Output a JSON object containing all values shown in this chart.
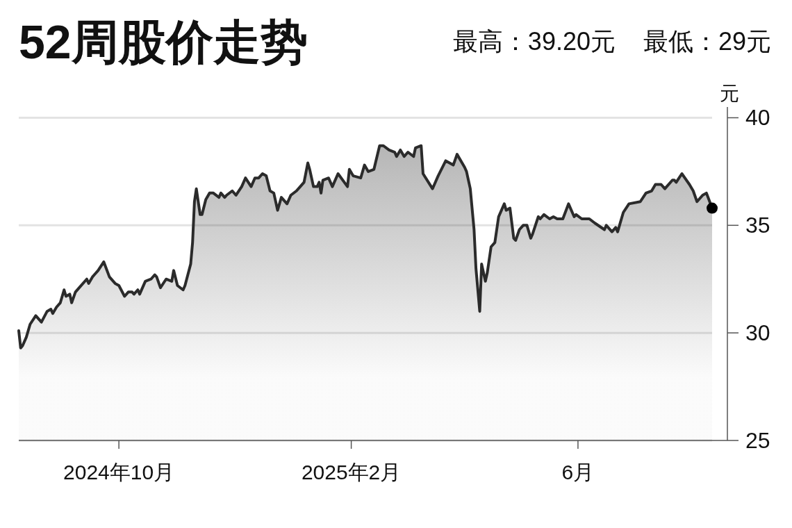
{
  "chart_data": {
    "type": "area",
    "title": "52周股价走势",
    "annotations": [
      "最高：39.20元",
      "最低：29元"
    ],
    "ylabel": "元",
    "xlim": [
      "2024-08-09",
      "2025-08-11"
    ],
    "xticks": [
      {
        "value": "2024-10-01",
        "label": "2024年10月"
      },
      {
        "value": "2025-02-01",
        "label": "2025年2月"
      },
      {
        "value": "2025-06-01",
        "label": "6月"
      }
    ],
    "ylim": [
      25,
      40.5
    ],
    "yticks": [
      25,
      30,
      35,
      40
    ],
    "grid": "y",
    "series": [
      {
        "color": "#2b2b2b",
        "x": [
          "2024-08-09",
          "2024-08-10",
          "2024-08-11",
          "2024-08-13",
          "2024-08-15",
          "2024-08-18",
          "2024-08-21",
          "2024-08-24",
          "2024-08-26",
          "2024-08-27",
          "2024-08-29",
          "2024-08-31",
          "2024-09-02",
          "2024-09-03",
          "2024-09-05",
          "2024-09-06",
          "2024-09-08",
          "2024-09-10",
          "2024-09-14",
          "2024-09-15",
          "2024-09-17",
          "2024-09-18",
          "2024-09-20",
          "2024-09-23",
          "2024-09-26",
          "2024-09-29",
          "2024-10-01",
          "2024-10-04",
          "2024-10-06",
          "2024-10-08",
          "2024-10-09",
          "2024-10-11",
          "2024-10-12",
          "2024-10-15",
          "2024-10-18",
          "2024-10-20",
          "2024-10-21",
          "2024-10-23",
          "2024-10-26",
          "2024-10-29",
          "2024-10-30",
          "2024-11-01",
          "2024-11-04",
          "2024-11-05",
          "2024-11-08",
          "2024-11-09",
          "2024-11-10",
          "2024-11-11",
          "2024-11-13",
          "2024-11-14",
          "2024-11-16",
          "2024-11-18",
          "2024-11-20",
          "2024-11-23",
          "2024-11-24",
          "2024-11-26",
          "2024-11-27",
          "2024-11-30",
          "2024-12-02",
          "2024-12-05",
          "2024-12-07",
          "2024-12-10",
          "2024-12-12",
          "2024-12-14",
          "2024-12-16",
          "2024-12-18",
          "2024-12-20",
          "2024-12-22",
          "2024-12-24",
          "2024-12-26",
          "2024-12-29",
          "2024-12-31",
          "2025-01-03",
          "2025-01-05",
          "2025-01-07",
          "2025-01-09",
          "2025-01-10",
          "2025-01-12",
          "2025-01-14",
          "2025-01-15",
          "2025-01-16",
          "2025-01-17",
          "2025-01-20",
          "2025-01-22",
          "2025-01-25",
          "2025-01-30",
          "2025-01-31",
          "2025-02-02",
          "2025-02-06",
          "2025-02-08",
          "2025-02-10",
          "2025-02-13",
          "2025-02-16",
          "2025-02-18",
          "2025-02-21",
          "2025-02-24",
          "2025-02-25",
          "2025-02-27",
          "2025-03-01",
          "2025-03-03",
          "2025-03-06",
          "2025-03-07",
          "2025-03-10",
          "2025-03-11",
          "2025-03-16",
          "2025-03-19",
          "2025-03-23",
          "2025-03-25",
          "2025-03-27",
          "2025-03-29",
          "2025-04-02",
          "2025-04-03",
          "2025-04-05",
          "2025-04-07",
          "2025-04-08",
          "2025-04-10",
          "2025-04-11",
          "2025-04-13",
          "2025-04-14",
          "2025-04-16",
          "2025-04-18",
          "2025-04-20",
          "2025-04-23",
          "2025-04-24",
          "2025-04-26",
          "2025-04-28",
          "2025-04-29",
          "2025-05-01",
          "2025-05-03",
          "2025-05-05",
          "2025-05-07",
          "2025-05-08",
          "2025-05-11",
          "2025-05-12",
          "2025-05-14",
          "2025-05-17",
          "2025-05-19",
          "2025-05-21",
          "2025-05-24",
          "2025-05-27",
          "2025-05-30",
          "2025-05-31",
          "2025-06-03",
          "2025-06-07",
          "2025-06-10",
          "2025-06-15",
          "2025-06-16",
          "2025-06-19",
          "2025-06-21",
          "2025-06-22",
          "2025-06-25",
          "2025-06-28",
          "2025-07-04",
          "2025-07-07",
          "2025-07-10",
          "2025-07-12",
          "2025-07-15",
          "2025-07-17",
          "2025-07-21",
          "2025-07-22",
          "2025-07-23",
          "2025-07-26",
          "2025-07-30",
          "2025-08-01",
          "2025-08-03",
          "2025-08-06",
          "2025-08-08",
          "2025-08-11"
        ],
        "values": [
          30.1,
          29.3,
          29.4,
          29.8,
          30.4,
          30.8,
          30.5,
          31.0,
          31.1,
          30.9,
          31.2,
          31.4,
          32.0,
          31.7,
          31.8,
          31.4,
          31.9,
          32.1,
          32.5,
          32.3,
          32.6,
          32.7,
          32.9,
          33.3,
          32.6,
          32.3,
          32.2,
          31.7,
          31.9,
          31.9,
          31.8,
          32.0,
          31.8,
          32.4,
          32.5,
          32.7,
          32.6,
          32.1,
          32.5,
          32.4,
          32.9,
          32.2,
          32.0,
          32.2,
          33.2,
          34.2,
          36.1,
          36.7,
          35.5,
          35.5,
          36.2,
          36.5,
          36.5,
          36.3,
          36.5,
          36.3,
          36.4,
          36.6,
          36.4,
          36.8,
          37.2,
          36.8,
          37.2,
          37.2,
          37.4,
          37.3,
          36.6,
          36.5,
          35.7,
          36.3,
          36.0,
          36.4,
          36.6,
          36.8,
          37.0,
          37.9,
          37.6,
          36.8,
          36.8,
          37.0,
          36.5,
          37.1,
          37.2,
          36.8,
          37.4,
          36.8,
          37.6,
          37.3,
          37.2,
          37.8,
          37.5,
          37.6,
          38.7,
          38.7,
          38.5,
          38.4,
          38.2,
          38.5,
          38.2,
          38.4,
          38.2,
          38.6,
          38.7,
          37.4,
          36.7,
          37.3,
          38.0,
          37.9,
          37.8,
          38.3,
          37.7,
          37.5,
          36.7,
          34.8,
          33.0,
          31.0,
          33.2,
          32.4,
          32.8,
          34.0,
          34.2,
          35.4,
          36.0,
          35.7,
          35.8,
          34.4,
          34.3,
          34.8,
          35.0,
          35.0,
          34.4,
          34.6,
          35.4,
          35.3,
          35.5,
          35.3,
          35.4,
          35.3,
          35.3,
          36.0,
          35.4,
          35.5,
          35.3,
          35.3,
          35.1,
          34.8,
          35.0,
          34.7,
          34.9,
          34.7,
          35.6,
          36.0,
          36.1,
          36.5,
          36.6,
          36.9,
          36.9,
          36.7,
          37.1,
          37.1,
          37.0,
          37.4,
          36.9,
          36.6,
          36.1,
          36.4,
          36.5,
          35.8
        ]
      },
      {
        "type": "scatter",
        "color": "#000000",
        "marker": "circle",
        "x": [
          "2025-08-11"
        ],
        "values": [
          35.8
        ]
      }
    ]
  }
}
